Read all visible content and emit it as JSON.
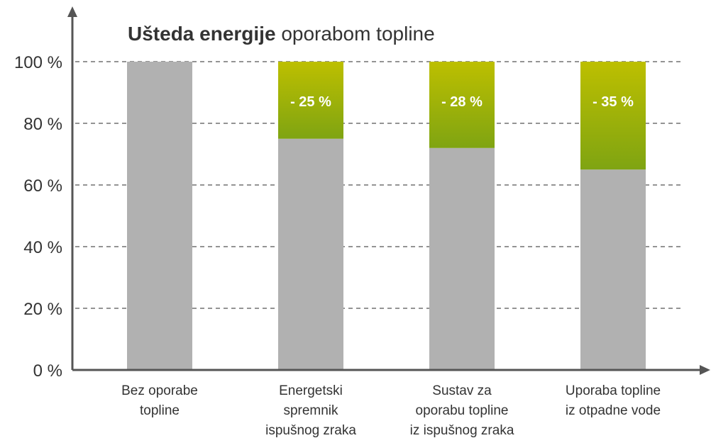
{
  "chart_data": {
    "type": "stacked_bar",
    "title": [
      "Ušteda energije",
      "oporabom topline"
    ],
    "categories": [
      [
        "Bez oporabe",
        "topline"
      ],
      [
        "Energetski",
        "spremnik",
        "ispušnog zraka"
      ],
      [
        "Sustav za",
        "oporabu topline",
        "iz ispušnog zraka"
      ],
      [
        "Uporaba topline",
        "iz otpadne vode"
      ]
    ],
    "series": [
      {
        "color": "#b1b1b1",
        "values": [
          100,
          75,
          72,
          65
        ]
      },
      {
        "color": "#9aae0a",
        "colors": [
          "#bdbf00",
          "#7fa412"
        ],
        "values": [
          0,
          25,
          28,
          35
        ],
        "value_labels": [
          null,
          "- 25 %",
          "- 28 %",
          "- 35 %"
        ]
      }
    ],
    "ylim": [
      0,
      100
    ],
    "yticks": [
      {
        "value": 0,
        "label": "0 %"
      },
      {
        "value": 20,
        "label": "20 %"
      },
      {
        "value": 40,
        "label": "40 %"
      },
      {
        "value": 60,
        "label": "60 %"
      },
      {
        "value": 80,
        "label": "80 %"
      },
      {
        "value": 100,
        "label": "100 %"
      }
    ],
    "grid": true
  }
}
